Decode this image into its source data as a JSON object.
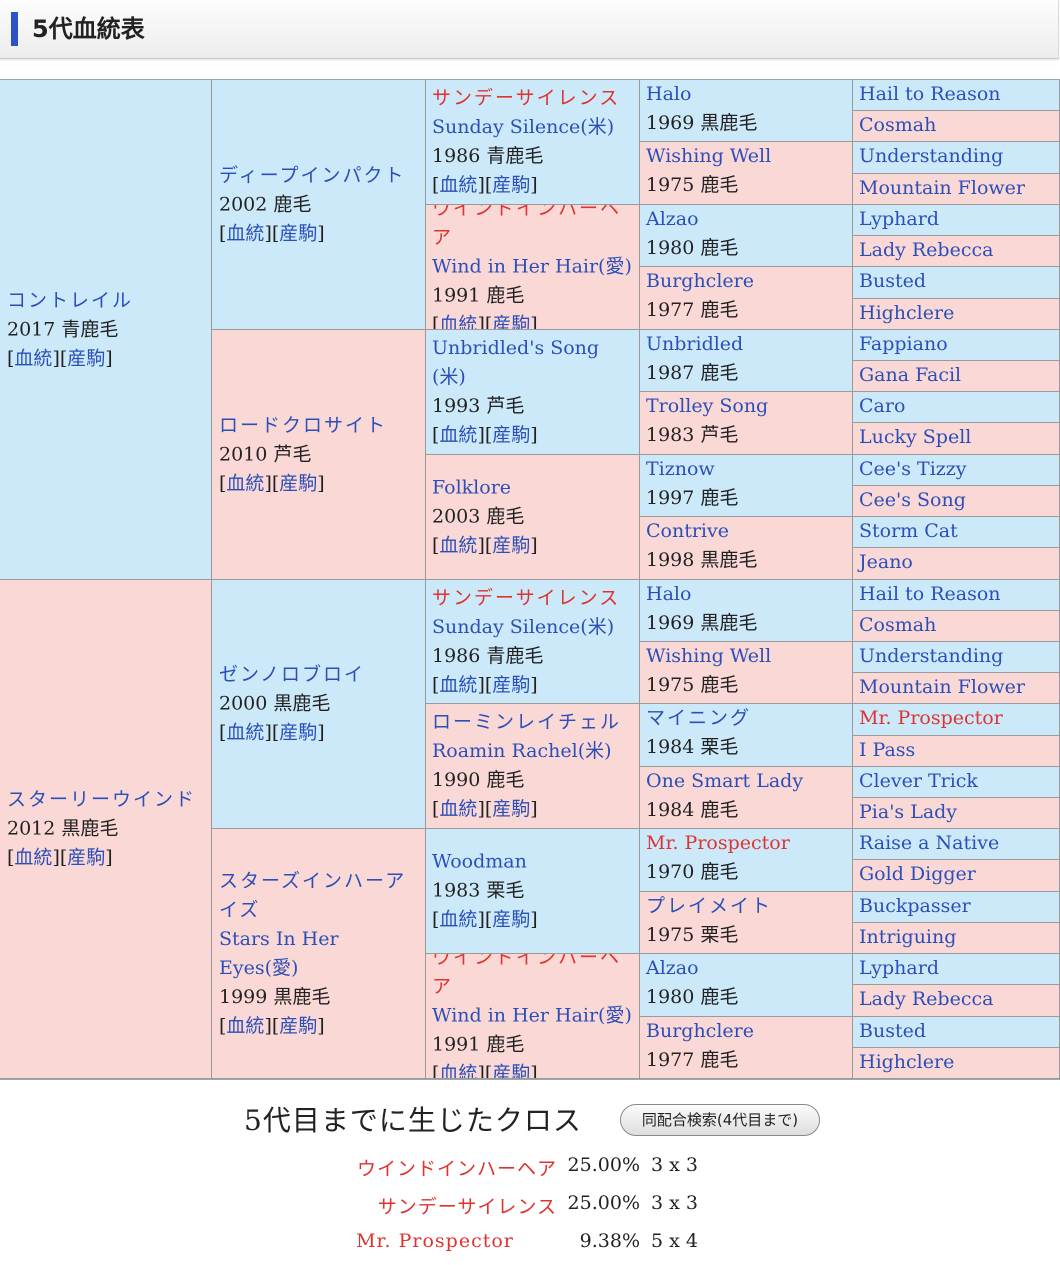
{
  "header": {
    "title": "5代血統表"
  },
  "links": {
    "pedigree": "血統",
    "progeny": "産駒"
  },
  "pedigree": {
    "sire": {
      "name": "コントレイル",
      "year_color": "2017 青鹿毛"
    },
    "dam": {
      "name": "スターリーウインド",
      "year_color": "2012 黒鹿毛"
    },
    "g2": [
      {
        "name": "ディープインパクト",
        "year_color": "2002 鹿毛"
      },
      {
        "name": "ロードクロサイト",
        "year_color": "2010 芦毛"
      },
      {
        "name": "ゼンノロブロイ",
        "year_color": "2000 黒鹿毛"
      },
      {
        "name": "スターズインハーアイズ",
        "name2": "Stars In Her Eyes(愛)",
        "year_color": "1999 黒鹿毛"
      }
    ],
    "g3": [
      {
        "name": "サンデーサイレンス",
        "name2": "Sunday Silence(米)",
        "year_color": "1986 青鹿毛"
      },
      {
        "name": "ウインドインハーヘア",
        "name2": "Wind in Her Hair(愛)",
        "year_color": "1991 鹿毛"
      },
      {
        "name": "Unbridled's Song",
        "name2": "(米)",
        "year_color": "1993 芦毛"
      },
      {
        "name": "Folklore",
        "year_color": "2003 鹿毛"
      },
      {
        "name": "サンデーサイレンス",
        "name2": "Sunday Silence(米)",
        "year_color": "1986 青鹿毛"
      },
      {
        "name": "ローミンレイチェル",
        "name2": "Roamin Rachel(米)",
        "year_color": "1990 鹿毛"
      },
      {
        "name": "Woodman",
        "year_color": "1983 栗毛"
      },
      {
        "name": "ウインドインハーヘア",
        "name2": "Wind in Her Hair(愛)",
        "year_color": "1991 鹿毛"
      }
    ],
    "g4": [
      {
        "name": "Halo",
        "year_color": "1969 黒鹿毛"
      },
      {
        "name": "Wishing Well",
        "year_color": "1975 鹿毛"
      },
      {
        "name": "Alzao",
        "year_color": "1980 鹿毛"
      },
      {
        "name": "Burghclere",
        "year_color": "1977 鹿毛"
      },
      {
        "name": "Unbridled",
        "year_color": "1987 鹿毛"
      },
      {
        "name": "Trolley Song",
        "year_color": "1983 芦毛"
      },
      {
        "name": "Tiznow",
        "year_color": "1997 鹿毛"
      },
      {
        "name": "Contrive",
        "year_color": "1998 黒鹿毛"
      },
      {
        "name": "Halo",
        "year_color": "1969 黒鹿毛"
      },
      {
        "name": "Wishing Well",
        "year_color": "1975 鹿毛"
      },
      {
        "name": "マイニング",
        "year_color": "1984 栗毛"
      },
      {
        "name": "One Smart Lady",
        "year_color": "1984 鹿毛"
      },
      {
        "name": "Mr. Prospector",
        "year_color": "1970 鹿毛"
      },
      {
        "name": "プレイメイト",
        "year_color": "1975 栗毛"
      },
      {
        "name": "Alzao",
        "year_color": "1980 鹿毛"
      },
      {
        "name": "Burghclere",
        "year_color": "1977 鹿毛"
      }
    ],
    "g5": [
      "Hail to Reason",
      "Cosmah",
      "Understanding",
      "Mountain Flower",
      "Lyphard",
      "Lady Rebecca",
      "Busted",
      "Highclere",
      "Fappiano",
      "Gana Facil",
      "Caro",
      "Lucky Spell",
      "Cee's Tizzy",
      "Cee's Song",
      "Storm Cat",
      "Jeano",
      "Hail to Reason",
      "Cosmah",
      "Understanding",
      "Mountain Flower",
      "Mr. Prospector",
      "I Pass",
      "Clever Trick",
      "Pia's Lady",
      "Raise a Native",
      "Gold Digger",
      "Buckpasser",
      "Intriguing",
      "Lyphard",
      "Lady Rebecca",
      "Busted",
      "Highclere"
    ]
  },
  "crosses": {
    "title": "5代目までに生じたクロス",
    "search_button": "同配合検索(4代目まで)",
    "rows": [
      {
        "name": "ウインドインハーヘア",
        "pct": "25.00%",
        "gen": "3 x 3"
      },
      {
        "name": "サンデーサイレンス",
        "pct": "25.00%",
        "gen": "3 x 3"
      },
      {
        "name": "Mr. Prospector",
        "pct": "9.38%",
        "gen": "5 x 4"
      }
    ]
  },
  "colors": {
    "male_bg": "#cce9fa",
    "female_bg": "#fad8d6",
    "link": "#2b4fb9",
    "cross_highlight": "#e0322e"
  }
}
